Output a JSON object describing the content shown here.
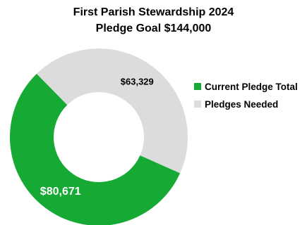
{
  "chart_data": {
    "type": "pie",
    "donut": true,
    "title": "First Parish Stewardship 2024",
    "subtitle": "Pledge Goal $144,000",
    "slices": [
      {
        "label": "Current Pledge Total",
        "value": 80671,
        "data_label": "$80,671",
        "color": "#16a934",
        "label_color": "#ffffff"
      },
      {
        "label": "Pledges Needed",
        "value": 63329,
        "data_label": "$63,329",
        "color": "#dcdcdc",
        "label_color": "#000000"
      }
    ],
    "legend_position": "right"
  }
}
